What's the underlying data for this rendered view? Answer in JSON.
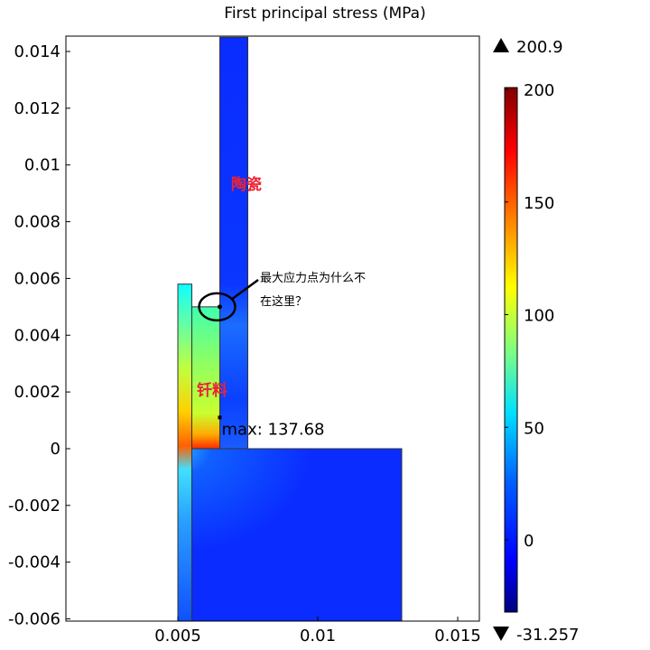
{
  "chart_data": {
    "type": "heatmap",
    "title": "First principal stress (MPa)",
    "xlabel": "",
    "ylabel": "",
    "xlim": [
      0.001,
      0.0158
    ],
    "ylim": [
      -0.0061,
      0.0145
    ],
    "x_ticks": [
      {
        "value": 0.005,
        "label": "0.005"
      },
      {
        "value": 0.01,
        "label": "0.01"
      },
      {
        "value": 0.015,
        "label": "0.015"
      }
    ],
    "y_ticks": [
      {
        "value": 0.014,
        "label": "0.014"
      },
      {
        "value": 0.012,
        "label": "0.012"
      },
      {
        "value": 0.01,
        "label": "0.01"
      },
      {
        "value": 0.008,
        "label": "0.008"
      },
      {
        "value": 0.006,
        "label": "0.006"
      },
      {
        "value": 0.004,
        "label": "0.004"
      },
      {
        "value": 0.002,
        "label": "0.002"
      },
      {
        "value": 0,
        "label": "0"
      },
      {
        "value": -0.002,
        "label": "-0.002"
      },
      {
        "value": -0.004,
        "label": "-0.004"
      },
      {
        "value": -0.006,
        "label": "-0.006"
      }
    ],
    "domains": [
      {
        "name": "bottom-block",
        "x": [
          0.005,
          0.013
        ],
        "y": [
          -0.0061,
          0
        ],
        "fill": "grad-base"
      },
      {
        "name": "outer-strip",
        "x": [
          0.005,
          0.0055
        ],
        "y": [
          -0.0061,
          0.0058
        ],
        "fill": "grad-strip"
      },
      {
        "name": "solder",
        "x": [
          0.0055,
          0.0065
        ],
        "y": [
          0,
          0.005
        ],
        "fill": "grad-solder"
      },
      {
        "name": "ceramic",
        "x": [
          0.0065,
          0.0075
        ],
        "y": [
          0,
          0.0145
        ],
        "fill": "grad-ceramic"
      }
    ],
    "colorbar": {
      "min": -31.257,
      "max": 200.9,
      "max_label": "200.9",
      "min_label": "-31.257",
      "ticks": [
        {
          "value": 200,
          "label": "200"
        },
        {
          "value": 150,
          "label": "150"
        },
        {
          "value": 100,
          "label": "100"
        },
        {
          "value": 50,
          "label": "50"
        },
        {
          "value": 0,
          "label": "0"
        }
      ]
    },
    "max_marker": {
      "x": 0.0065,
      "y": 0.0011,
      "label": "max: 137.68"
    },
    "annotations": {
      "ceramic_label": "陶瓷",
      "solder_label": "钎料",
      "question_line1": "最大应力点为什么不",
      "question_line2": "在这里？",
      "circle_point": {
        "x": 0.0065,
        "y": 0.005
      }
    },
    "label_color": "#ee2233"
  }
}
